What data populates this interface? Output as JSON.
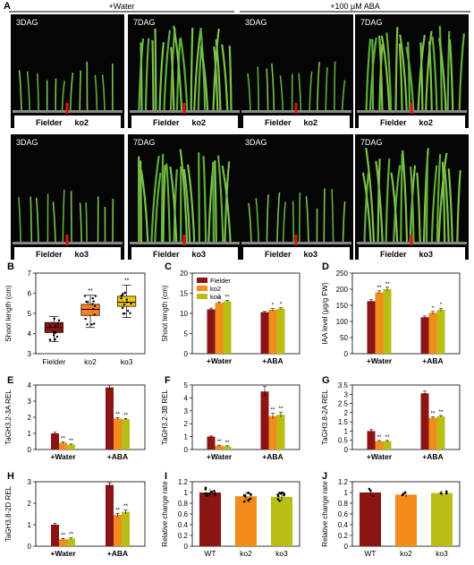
{
  "panel_letters": [
    "A",
    "B",
    "C",
    "D",
    "E",
    "F",
    "G",
    "H",
    "I",
    "J"
  ],
  "header": {
    "water": "+Water",
    "aba": "+100 μM ABA"
  },
  "photos": [
    {
      "days": "3DAG",
      "genotypes": [
        "Fielder",
        "ko2"
      ]
    },
    {
      "days": "7DAG",
      "genotypes": [
        "Fielder",
        "ko2"
      ]
    },
    {
      "days": "3DAG",
      "genotypes": [
        "Fielder",
        "ko2"
      ]
    },
    {
      "days": "7DAG",
      "genotypes": [
        "Fielder",
        "ko2"
      ]
    },
    {
      "days": "3DAG",
      "genotypes": [
        "Fielder",
        "ko3"
      ]
    },
    {
      "days": "7DAG",
      "genotypes": [
        "Fielder",
        "ko3"
      ]
    },
    {
      "days": "3DAG",
      "genotypes": [
        "Fielder",
        "ko3"
      ]
    },
    {
      "days": "7DAG",
      "genotypes": [
        "Fielder",
        "ko3"
      ]
    }
  ],
  "colors": {
    "fielder": "#8b1414",
    "ko2": "#f28c1c",
    "ko3": "#b8be14",
    "box": "#ff7f1e",
    "boxko3": "#f1c40f"
  },
  "legend": [
    "Fielder",
    "ko2",
    "ko3"
  ],
  "chart_data": [
    {
      "id": "B",
      "type": "box",
      "ylabel": "Shoot length (cm)",
      "ylim": [
        3,
        7
      ],
      "yticks": [
        3,
        4,
        5,
        6,
        7
      ],
      "categories": [
        "Fielder",
        "ko2",
        "ko3"
      ],
      "boxes": [
        {
          "min": 3.6,
          "q1": 4.05,
          "median": 4.3,
          "q3": 4.55,
          "max": 4.85
        },
        {
          "min": 4.3,
          "q1": 4.9,
          "median": 5.2,
          "q3": 5.45,
          "max": 5.9
        },
        {
          "min": 4.8,
          "q1": 5.35,
          "median": 5.55,
          "q3": 5.85,
          "max": 6.4
        }
      ],
      "stars": [
        "",
        "**",
        "**"
      ]
    },
    {
      "id": "C",
      "type": "bar",
      "ylabel": "Shoot length (cm)",
      "ylim": [
        0,
        20
      ],
      "yticks": [
        0,
        5,
        10,
        15,
        20
      ],
      "categories": [
        "+Water",
        "+ABA"
      ],
      "series": [
        {
          "name": "Fielder",
          "values": [
            11.0,
            10.3
          ],
          "errors": [
            0.3,
            0.2
          ]
        },
        {
          "name": "ko2",
          "values": [
            12.6,
            10.9
          ],
          "errors": [
            0.2,
            0.3
          ]
        },
        {
          "name": "ko3",
          "values": [
            13.0,
            11.2
          ],
          "errors": [
            0.2,
            0.2
          ]
        }
      ],
      "stars": [
        [
          "",
          "**",
          "**"
        ],
        [
          "",
          "*",
          "*"
        ]
      ]
    },
    {
      "id": "D",
      "type": "bar",
      "ylabel": "IAA level (μg/g FW)",
      "ylim": [
        0,
        250
      ],
      "yticks": [
        0,
        50,
        100,
        150,
        200,
        250
      ],
      "categories": [
        "+Water",
        "+ABA"
      ],
      "series": [
        {
          "name": "Fielder",
          "values": [
            163,
            113
          ],
          "errors": [
            5,
            4
          ]
        },
        {
          "name": "ko2",
          "values": [
            190,
            127
          ],
          "errors": [
            5,
            4
          ]
        },
        {
          "name": "ko3",
          "values": [
            200,
            136
          ],
          "errors": [
            6,
            5
          ]
        }
      ],
      "stars": [
        [
          "",
          "**",
          "**"
        ],
        [
          "",
          "*",
          "*"
        ]
      ]
    },
    {
      "id": "E",
      "type": "bar",
      "ylabel": "TaGH3.2-3A REL",
      "ylim": [
        0,
        4
      ],
      "yticks": [
        0,
        1,
        2,
        3,
        4
      ],
      "categories": [
        "+Water",
        "+ABA"
      ],
      "series": [
        {
          "name": "Fielder",
          "values": [
            1.0,
            3.85
          ],
          "errors": [
            0.07,
            0.15
          ]
        },
        {
          "name": "ko2",
          "values": [
            0.42,
            1.92
          ],
          "errors": [
            0.05,
            0.05
          ]
        },
        {
          "name": "ko3",
          "values": [
            0.3,
            1.88
          ],
          "errors": [
            0.04,
            0.05
          ]
        }
      ],
      "stars": [
        [
          "",
          "**",
          "**"
        ],
        [
          "",
          "**",
          "**"
        ]
      ]
    },
    {
      "id": "F",
      "type": "bar",
      "ylabel": "TaGH3.2-3B REL",
      "ylim": [
        0,
        5
      ],
      "yticks": [
        0,
        1,
        2,
        3,
        4,
        5
      ],
      "categories": [
        "+Water",
        "+ABA"
      ],
      "series": [
        {
          "name": "Fielder",
          "values": [
            1.0,
            4.5
          ],
          "errors": [
            0.05,
            0.4
          ]
        },
        {
          "name": "ko2",
          "values": [
            0.3,
            2.6
          ],
          "errors": [
            0.04,
            0.2
          ]
        },
        {
          "name": "ko3",
          "values": [
            0.25,
            2.7
          ],
          "errors": [
            0.04,
            0.2
          ]
        }
      ],
      "stars": [
        [
          "",
          "**",
          "**"
        ],
        [
          "",
          "**",
          "**"
        ]
      ]
    },
    {
      "id": "G",
      "type": "bar",
      "ylabel": "TaGH3.8-2A REL",
      "ylim": [
        0,
        3.5
      ],
      "yticks": [
        0,
        0.5,
        1,
        1.5,
        2,
        2.5,
        3,
        3.5
      ],
      "categories": [
        "+Water",
        "+ABA"
      ],
      "series": [
        {
          "name": "Fielder",
          "values": [
            1.0,
            3.05
          ],
          "errors": [
            0.08,
            0.12
          ]
        },
        {
          "name": "ko2",
          "values": [
            0.45,
            1.72
          ],
          "errors": [
            0.04,
            0.05
          ]
        },
        {
          "name": "ko3",
          "values": [
            0.45,
            1.8
          ],
          "errors": [
            0.04,
            0.05
          ]
        }
      ],
      "stars": [
        [
          "",
          "**",
          "**"
        ],
        [
          "",
          "**",
          "**"
        ]
      ]
    },
    {
      "id": "H",
      "type": "bar",
      "ylabel": "TaGH3.8-2D REL",
      "ylim": [
        0,
        3
      ],
      "yticks": [
        0,
        1,
        2,
        3
      ],
      "categories": [
        "+Water",
        "+ABA"
      ],
      "series": [
        {
          "name": "Fielder",
          "values": [
            1.0,
            2.85
          ],
          "errors": [
            0.07,
            0.1
          ]
        },
        {
          "name": "ko2",
          "values": [
            0.32,
            1.45
          ],
          "errors": [
            0.04,
            0.08
          ]
        },
        {
          "name": "ko3",
          "values": [
            0.35,
            1.6
          ],
          "errors": [
            0.04,
            0.1
          ]
        }
      ],
      "stars": [
        [
          "",
          "**",
          "**"
        ],
        [
          "",
          "**",
          "**"
        ]
      ]
    },
    {
      "id": "I",
      "type": "simplebar",
      "ylabel": "Relative change rate",
      "ylim": [
        0,
        1.2
      ],
      "yticks": [
        0,
        0.2,
        0.4,
        0.6,
        0.8,
        1.0,
        1.2
      ],
      "categories": [
        "WT",
        "ko2",
        "ko3"
      ],
      "values": [
        1.0,
        0.93,
        0.92
      ],
      "errors": [
        0.07,
        0.08,
        0.08
      ]
    },
    {
      "id": "J",
      "type": "simplebar",
      "ylabel": "Relative change rate",
      "ylim": [
        0,
        1.2
      ],
      "yticks": [
        0,
        0.2,
        0.4,
        0.6,
        0.8,
        1.0,
        1.2
      ],
      "categories": [
        "WT",
        "ko2",
        "ko3"
      ],
      "values": [
        1.0,
        0.96,
        0.99
      ],
      "errors": [
        0.06,
        0.05,
        0.05
      ]
    }
  ]
}
